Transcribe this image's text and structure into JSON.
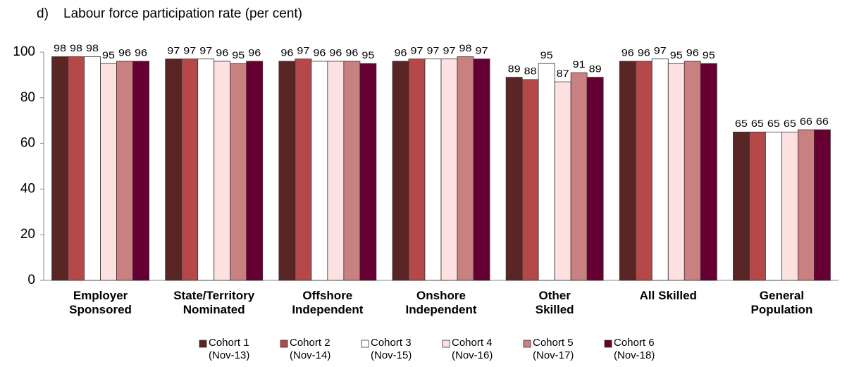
{
  "chart_data": {
    "type": "bar",
    "panel_label": "d)",
    "title": "Labour force participation rate (per cent)",
    "categories": [
      "Employer\nSponsored",
      "State/Territory\nNominated",
      "Offshore\nIndependent",
      "Onshore\nIndependent",
      "Other\nSkilled",
      "All Skilled",
      "General\nPopulation"
    ],
    "series": [
      {
        "name": "Cohort 1\n(Nov-13)",
        "color": "#5a2525",
        "values": [
          98,
          97,
          96,
          96,
          89,
          96,
          65
        ]
      },
      {
        "name": "Cohort 2\n(Nov-14)",
        "color": "#b5494a",
        "values": [
          98,
          97,
          97,
          97,
          88,
          96,
          65
        ]
      },
      {
        "name": "Cohort 3\n(Nov-15)",
        "color": "#ffffff",
        "values": [
          98,
          97,
          96,
          97,
          95,
          97,
          65
        ]
      },
      {
        "name": "Cohort 4\n(Nov-16)",
        "color": "#fde0e0",
        "values": [
          95,
          96,
          96,
          97,
          87,
          95,
          65
        ]
      },
      {
        "name": "Cohort 5\n(Nov-17)",
        "color": "#c98080",
        "values": [
          96,
          95,
          96,
          98,
          91,
          96,
          66
        ]
      },
      {
        "name": "Cohort 6\n(Nov-18)",
        "color": "#660033",
        "values": [
          96,
          96,
          95,
          97,
          89,
          95,
          66
        ]
      }
    ],
    "ylim": [
      0,
      100
    ],
    "yticks": [
      0,
      20,
      40,
      60,
      80,
      100
    ],
    "grid": false,
    "legend": "bottom"
  }
}
